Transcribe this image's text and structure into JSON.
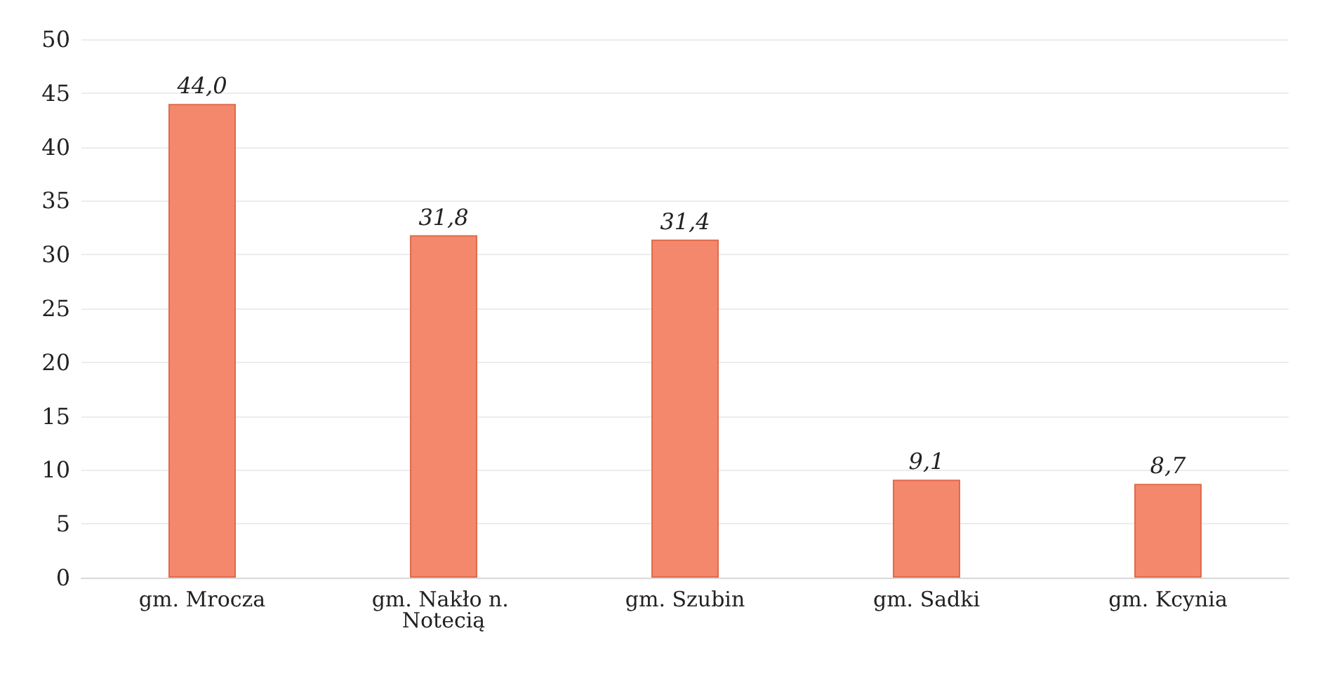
{
  "chart_data": {
    "type": "bar",
    "categories": [
      "gm. Mrocza",
      "gm. Nakło n. Notecią",
      "gm. Szubin",
      "gm. Sadki",
      "gm. Kcynia"
    ],
    "values": [
      44.0,
      31.8,
      31.4,
      9.1,
      8.7
    ],
    "value_labels": [
      "44,0",
      "31,8",
      "31,4",
      "9,1",
      "8,7"
    ],
    "color": "#f4886c",
    "ylim": [
      0,
      50
    ],
    "yticks": [
      0,
      5,
      10,
      15,
      20,
      25,
      30,
      35,
      40,
      45,
      50
    ],
    "grid": "y"
  }
}
